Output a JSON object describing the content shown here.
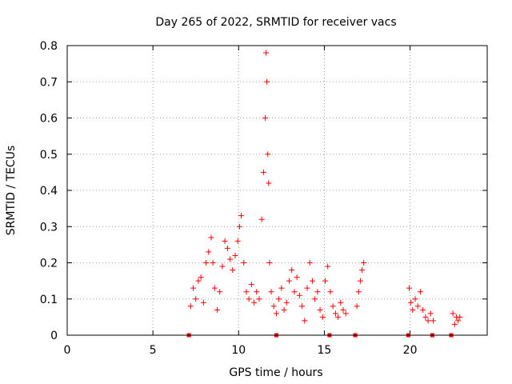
{
  "chart_data": {
    "type": "scatter",
    "title": "Day 265 of 2022, SRMTID for receiver vacs",
    "xlabel": "GPS time / hours",
    "ylabel": "SRMTID / TECUs",
    "xlim": [
      0,
      24.5
    ],
    "ylim": [
      0,
      0.8
    ],
    "xticks": [
      0,
      5,
      10,
      15,
      20
    ],
    "xtick_labels": [
      "0",
      "5",
      "10",
      "15",
      "20"
    ],
    "yticks": [
      0,
      0.1,
      0.2,
      0.3,
      0.4,
      0.5,
      0.6,
      0.7,
      0.8
    ],
    "ytick_labels": [
      "0",
      "0.1",
      "0.2",
      "0.3",
      "0.4",
      "0.5",
      "0.6",
      "0.7",
      "0.8"
    ],
    "grid": true,
    "marker": "+",
    "color": "#ff0000",
    "series": [
      {
        "name": "SRMTID",
        "x": [
          7.2,
          7.35,
          7.5,
          7.65,
          7.8,
          7.95,
          8.1,
          8.25,
          8.4,
          8.5,
          8.6,
          8.75,
          8.9,
          9.05,
          9.2,
          9.35,
          9.5,
          9.65,
          9.8,
          9.95,
          10.05,
          10.15,
          10.3,
          10.45,
          10.6,
          10.75,
          10.9,
          11.05,
          11.2,
          11.35,
          11.45,
          11.55,
          11.6,
          11.65,
          11.7,
          11.75,
          11.8,
          11.9,
          12.05,
          12.2,
          12.35,
          12.5,
          12.65,
          12.8,
          12.95,
          13.1,
          13.25,
          13.4,
          13.55,
          13.7,
          13.85,
          14.0,
          14.15,
          14.3,
          14.45,
          14.6,
          14.75,
          14.9,
          15.05,
          15.2,
          15.35,
          15.5,
          15.65,
          15.8,
          15.95,
          16.1,
          16.25,
          16.9,
          17.0,
          17.1,
          17.2,
          17.3,
          19.95,
          20.05,
          20.15,
          20.3,
          20.45,
          20.6,
          20.75,
          20.9,
          21.05,
          21.2,
          21.35,
          22.5,
          22.6,
          22.7,
          22.8,
          22.9
        ],
        "y": [
          0.08,
          0.13,
          0.1,
          0.15,
          0.16,
          0.09,
          0.2,
          0.23,
          0.27,
          0.2,
          0.13,
          0.07,
          0.12,
          0.19,
          0.26,
          0.24,
          0.21,
          0.18,
          0.22,
          0.26,
          0.3,
          0.33,
          0.2,
          0.12,
          0.1,
          0.14,
          0.09,
          0.12,
          0.1,
          0.32,
          0.45,
          0.6,
          0.78,
          0.7,
          0.5,
          0.42,
          0.2,
          0.12,
          0.08,
          0.06,
          0.1,
          0.13,
          0.07,
          0.09,
          0.15,
          0.18,
          0.12,
          0.16,
          0.11,
          0.08,
          0.04,
          0.13,
          0.2,
          0.15,
          0.1,
          0.12,
          0.07,
          0.05,
          0.15,
          0.19,
          0.12,
          0.08,
          0.06,
          0.05,
          0.09,
          0.07,
          0.06,
          0.08,
          0.12,
          0.15,
          0.18,
          0.2,
          0.13,
          0.09,
          0.07,
          0.1,
          0.08,
          0.12,
          0.07,
          0.05,
          0.04,
          0.06,
          0.04,
          0.06,
          0.03,
          0.05,
          0.04,
          0.05
        ]
      }
    ],
    "zero_markers_x": [
      7.1,
      12.2,
      15.3,
      16.8,
      19.9,
      21.3,
      22.4
    ]
  }
}
